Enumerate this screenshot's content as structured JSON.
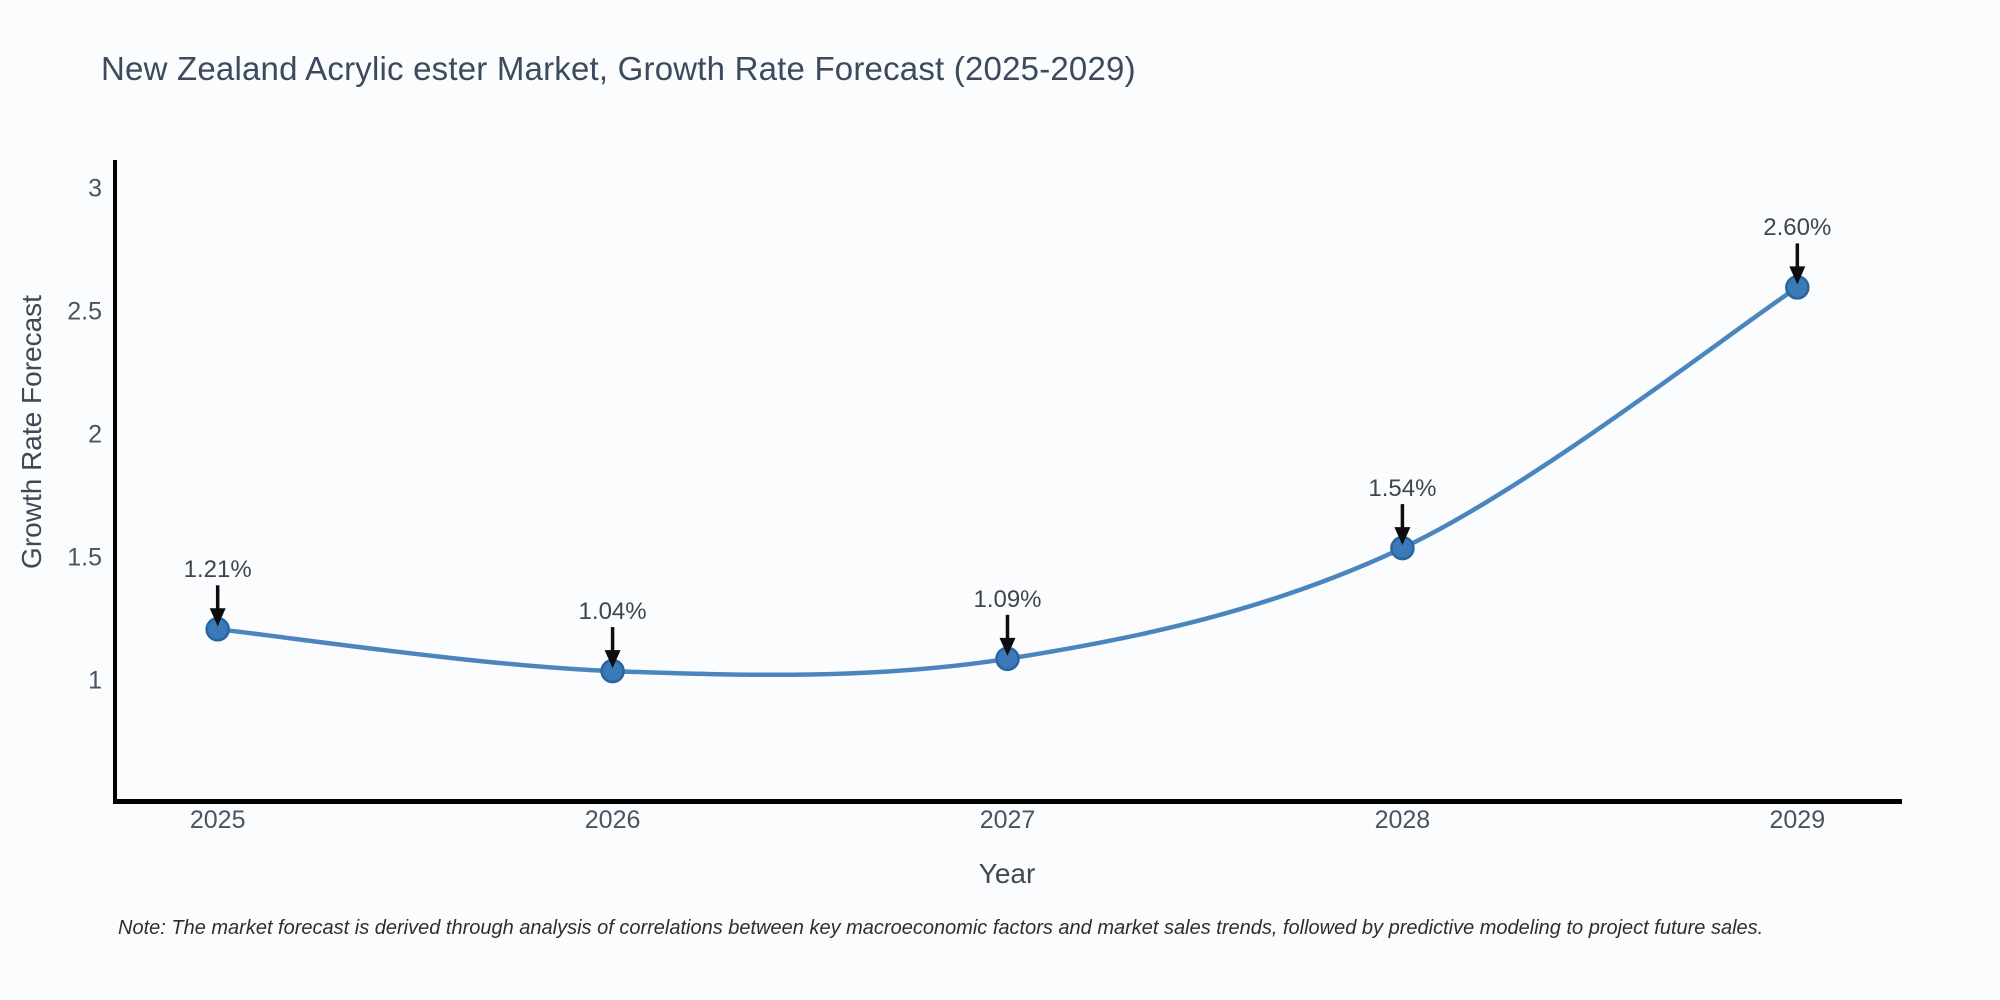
{
  "title": "New Zealand Acrylic ester Market, Growth Rate Forecast (2025-2029)",
  "note": "Note: The market forecast is derived through analysis of correlations between key macroeconomic factors and market sales trends, followed by predictive modeling to project future sales.",
  "colors": {
    "line": "#4a86bd",
    "marker_fill": "#3a7ab8",
    "marker_edge": "#2b659f",
    "arrow": "#0d0d0d",
    "spine": "#000000",
    "title_text": "#3b4a5c",
    "tick_text": "#4a5361",
    "background": "#fbfcfd"
  },
  "chart_data": {
    "type": "line",
    "title": "New Zealand Acrylic ester Market, Growth Rate Forecast (2025-2029)",
    "xlabel": "Year",
    "ylabel": "Growth Rate Forecast",
    "x": [
      2025,
      2026,
      2027,
      2028,
      2029
    ],
    "values": [
      1.21,
      1.04,
      1.09,
      1.54,
      2.6
    ],
    "point_labels": [
      "1.21%",
      "1.04%",
      "1.09%",
      "1.54%",
      "2.60%"
    ],
    "xtick_labels": [
      "2025",
      "2026",
      "2027",
      "2028",
      "2029"
    ],
    "ytick_values": [
      1,
      1.5,
      2,
      2.5,
      3
    ],
    "ytick_labels": [
      "1",
      "1.5",
      "2",
      "2.5",
      "3"
    ],
    "xlim": [
      2024.74,
      2029.26
    ],
    "ylim": [
      0.516,
      3.118
    ],
    "grid": false,
    "legend": "none",
    "line_style": "smooth",
    "marker": "circle",
    "annotation_style": "black-down-arrow"
  }
}
